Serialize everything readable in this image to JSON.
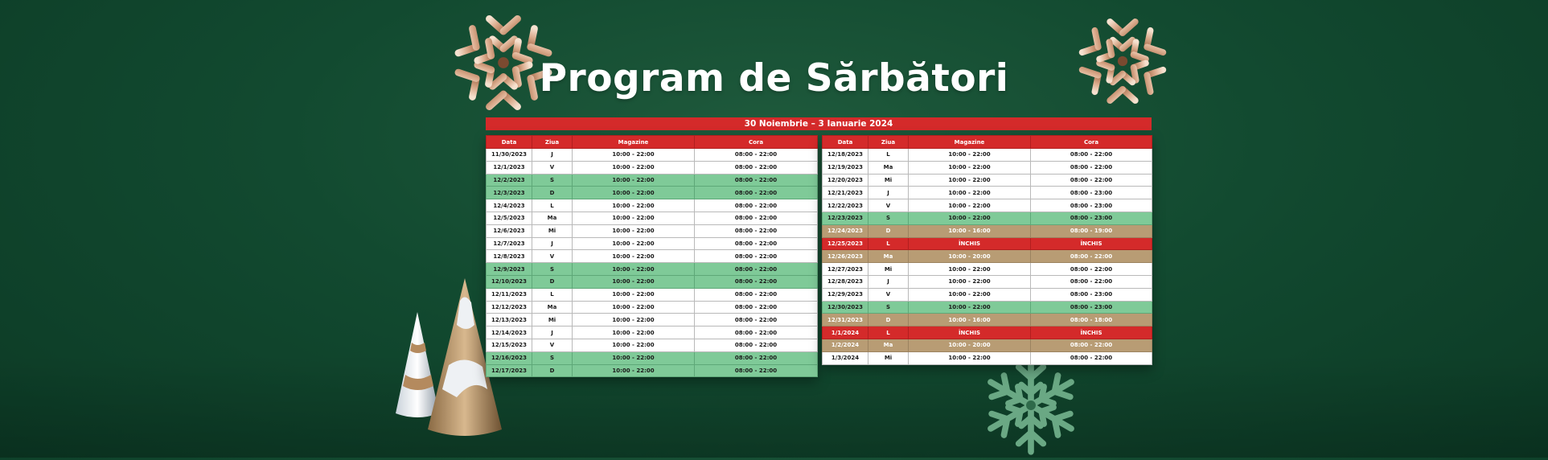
{
  "title": "Program de Sărbători",
  "date_range": "30 Noiembrie – 3 Ianuarie 2024",
  "columns": {
    "data": "Data",
    "ziua": "Ziua",
    "magazine": "Magazine",
    "cora": "Cora"
  },
  "colors": {
    "header_red": "#d42a2a",
    "weekend_green": "#7fca98",
    "holiday_tan": "#b89c74",
    "background_green": "#124a30"
  },
  "left_table": [
    {
      "date": "11/30/2023",
      "day": "J",
      "mag": "10:00 - 22:00",
      "cora": "08:00 - 22:00",
      "type": "normal"
    },
    {
      "date": "12/1/2023",
      "day": "V",
      "mag": "10:00 - 22:00",
      "cora": "08:00 - 22:00",
      "type": "normal"
    },
    {
      "date": "12/2/2023",
      "day": "S",
      "mag": "10:00 - 22:00",
      "cora": "08:00 - 22:00",
      "type": "weekend"
    },
    {
      "date": "12/3/2023",
      "day": "D",
      "mag": "10:00 - 22:00",
      "cora": "08:00 - 22:00",
      "type": "weekend"
    },
    {
      "date": "12/4/2023",
      "day": "L",
      "mag": "10:00 - 22:00",
      "cora": "08:00 - 22:00",
      "type": "normal"
    },
    {
      "date": "12/5/2023",
      "day": "Ma",
      "mag": "10:00 - 22:00",
      "cora": "08:00 - 22:00",
      "type": "normal"
    },
    {
      "date": "12/6/2023",
      "day": "Mi",
      "mag": "10:00 - 22:00",
      "cora": "08:00 - 22:00",
      "type": "normal"
    },
    {
      "date": "12/7/2023",
      "day": "J",
      "mag": "10:00 - 22:00",
      "cora": "08:00 - 22:00",
      "type": "normal"
    },
    {
      "date": "12/8/2023",
      "day": "V",
      "mag": "10:00 - 22:00",
      "cora": "08:00 - 22:00",
      "type": "normal"
    },
    {
      "date": "12/9/2023",
      "day": "S",
      "mag": "10:00 - 22:00",
      "cora": "08:00 - 22:00",
      "type": "weekend"
    },
    {
      "date": "12/10/2023",
      "day": "D",
      "mag": "10:00 - 22:00",
      "cora": "08:00 - 22:00",
      "type": "weekend"
    },
    {
      "date": "12/11/2023",
      "day": "L",
      "mag": "10:00 - 22:00",
      "cora": "08:00 - 22:00",
      "type": "normal"
    },
    {
      "date": "12/12/2023",
      "day": "Ma",
      "mag": "10:00 - 22:00",
      "cora": "08:00 - 22:00",
      "type": "normal"
    },
    {
      "date": "12/13/2023",
      "day": "Mi",
      "mag": "10:00 - 22:00",
      "cora": "08:00 - 22:00",
      "type": "normal"
    },
    {
      "date": "12/14/2023",
      "day": "J",
      "mag": "10:00 - 22:00",
      "cora": "08:00 - 22:00",
      "type": "normal"
    },
    {
      "date": "12/15/2023",
      "day": "V",
      "mag": "10:00 - 22:00",
      "cora": "08:00 - 22:00",
      "type": "normal"
    },
    {
      "date": "12/16/2023",
      "day": "S",
      "mag": "10:00 - 22:00",
      "cora": "08:00 - 22:00",
      "type": "weekend"
    },
    {
      "date": "12/17/2023",
      "day": "D",
      "mag": "10:00 - 22:00",
      "cora": "08:00 - 22:00",
      "type": "weekend"
    }
  ],
  "right_table": [
    {
      "date": "12/18/2023",
      "day": "L",
      "mag": "10:00 - 22:00",
      "cora": "08:00 - 22:00",
      "type": "normal"
    },
    {
      "date": "12/19/2023",
      "day": "Ma",
      "mag": "10:00 - 22:00",
      "cora": "08:00 - 22:00",
      "type": "normal"
    },
    {
      "date": "12/20/2023",
      "day": "Mi",
      "mag": "10:00 - 22:00",
      "cora": "08:00 - 22:00",
      "type": "normal"
    },
    {
      "date": "12/21/2023",
      "day": "J",
      "mag": "10:00 - 22:00",
      "cora": "08:00 - 23:00",
      "type": "normal"
    },
    {
      "date": "12/22/2023",
      "day": "V",
      "mag": "10:00 - 22:00",
      "cora": "08:00 - 23:00",
      "type": "normal"
    },
    {
      "date": "12/23/2023",
      "day": "S",
      "mag": "10:00 - 22:00",
      "cora": "08:00 - 23:00",
      "type": "weekend"
    },
    {
      "date": "12/24/2023",
      "day": "D",
      "mag": "10:00 - 16:00",
      "cora": "08:00 - 19:00",
      "type": "holiday"
    },
    {
      "date": "12/25/2023",
      "day": "L",
      "mag": "ÎNCHIS",
      "cora": "ÎNCHIS",
      "type": "closed"
    },
    {
      "date": "12/26/2023",
      "day": "Ma",
      "mag": "10:00 - 20:00",
      "cora": "08:00 - 22:00",
      "type": "holiday"
    },
    {
      "date": "12/27/2023",
      "day": "Mi",
      "mag": "10:00 - 22:00",
      "cora": "08:00 - 22:00",
      "type": "normal"
    },
    {
      "date": "12/28/2023",
      "day": "J",
      "mag": "10:00 - 22:00",
      "cora": "08:00 - 22:00",
      "type": "normal"
    },
    {
      "date": "12/29/2023",
      "day": "V",
      "mag": "10:00 - 22:00",
      "cora": "08:00 - 23:00",
      "type": "normal"
    },
    {
      "date": "12/30/2023",
      "day": "S",
      "mag": "10:00 - 22:00",
      "cora": "08:00 - 23:00",
      "type": "weekend"
    },
    {
      "date": "12/31/2023",
      "day": "D",
      "mag": "10:00 - 16:00",
      "cora": "08:00 - 18:00",
      "type": "holiday"
    },
    {
      "date": "1/1/2024",
      "day": "L",
      "mag": "ÎNCHIS",
      "cora": "ÎNCHIS",
      "type": "closed"
    },
    {
      "date": "1/2/2024",
      "day": "Ma",
      "mag": "10:00 - 20:00",
      "cora": "08:00 - 22:00",
      "type": "holiday"
    },
    {
      "date": "1/3/2024",
      "day": "Mi",
      "mag": "10:00 - 22:00",
      "cora": "08:00 - 22:00",
      "type": "normal"
    }
  ],
  "decorations": [
    "snowflake-gold-icon",
    "snowflake-gold-icon",
    "snowflake-green-icon",
    "cone-tree-icon",
    "cone-tree-icon"
  ]
}
